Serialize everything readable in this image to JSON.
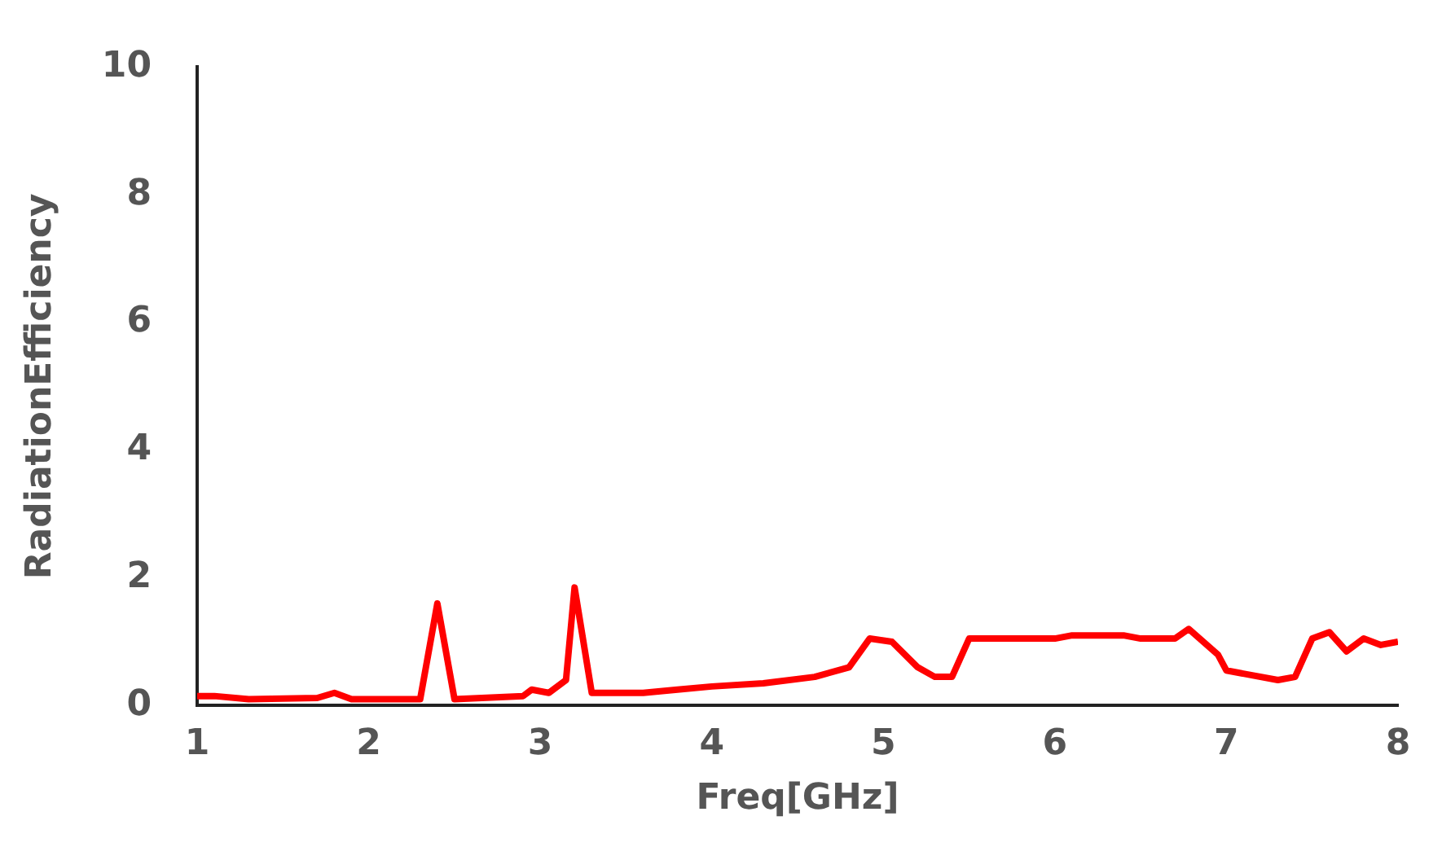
{
  "chart_data": {
    "type": "line",
    "xlabel": "Freq[GHz]",
    "ylabel": "RadiationEfficiency",
    "xlim": [
      1,
      8
    ],
    "xticks": [
      1,
      2,
      3,
      4,
      5,
      6,
      7,
      8
    ],
    "ylim": [
      0,
      10
    ],
    "yticks": [
      0,
      2,
      4,
      6,
      8,
      10
    ],
    "grid": false,
    "legend": false,
    "marker": "none",
    "line_style": "solid",
    "series": [
      {
        "color": "#ff0000",
        "x": [
          1.0,
          1.1,
          1.3,
          1.7,
          1.8,
          1.9,
          2.3,
          2.4,
          2.5,
          2.9,
          2.95,
          3.05,
          3.15,
          3.2,
          3.3,
          3.6,
          3.8,
          4.0,
          4.3,
          4.6,
          4.8,
          4.92,
          5.05,
          5.2,
          5.3,
          5.4,
          5.5,
          6.0,
          6.1,
          6.4,
          6.5,
          6.7,
          6.78,
          6.95,
          7.0,
          7.3,
          7.4,
          7.5,
          7.6,
          7.7,
          7.8,
          7.9,
          8.0
        ],
        "values": [
          0.15,
          0.15,
          0.1,
          0.12,
          0.2,
          0.1,
          0.1,
          1.6,
          0.1,
          0.15,
          0.25,
          0.2,
          0.4,
          1.85,
          0.2,
          0.2,
          0.25,
          0.3,
          0.35,
          0.45,
          0.6,
          1.05,
          1.0,
          0.6,
          0.45,
          0.45,
          1.05,
          1.05,
          1.1,
          1.1,
          1.05,
          1.05,
          1.2,
          0.8,
          0.55,
          0.4,
          0.45,
          1.05,
          1.15,
          0.85,
          1.05,
          0.95,
          1.0
        ]
      }
    ]
  }
}
